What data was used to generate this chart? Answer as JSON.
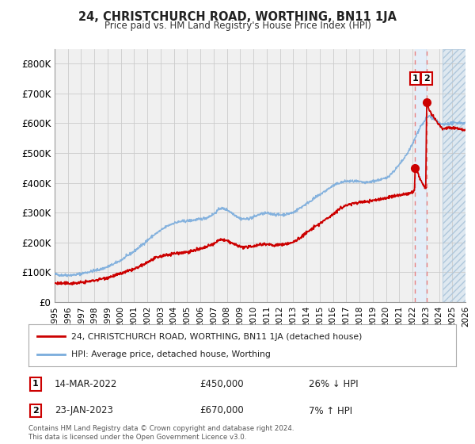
{
  "title": "24, CHRISTCHURCH ROAD, WORTHING, BN11 1JA",
  "subtitle": "Price paid vs. HM Land Registry's House Price Index (HPI)",
  "xlim_start": 1995.0,
  "xlim_end": 2026.0,
  "ylim": [
    0,
    850000
  ],
  "yticks": [
    0,
    100000,
    200000,
    300000,
    400000,
    500000,
    600000,
    700000,
    800000
  ],
  "ytick_labels": [
    "£0",
    "£100K",
    "£200K",
    "£300K",
    "£400K",
    "£500K",
    "£600K",
    "£700K",
    "£800K"
  ],
  "hpi_color": "#7aacdc",
  "price_color": "#cc0000",
  "marker_color": "#cc0000",
  "dashed_line_color": "#e88080",
  "background_color": "#ffffff",
  "plot_bg_color": "#f0f0f0",
  "future_hatch_color": "#dde8f0",
  "sale1_x": 2022.2,
  "sale1_y": 450000,
  "sale2_x": 2023.07,
  "sale2_y": 670000,
  "future_start": 2024.25,
  "legend_line1": "24, CHRISTCHURCH ROAD, WORTHING, BN11 1JA (detached house)",
  "legend_line2": "HPI: Average price, detached house, Worthing",
  "note1_num": "1",
  "note1_date": "14-MAR-2022",
  "note1_price": "£450,000",
  "note1_hpi": "26% ↓ HPI",
  "note2_num": "2",
  "note2_date": "23-JAN-2023",
  "note2_price": "£670,000",
  "note2_hpi": "7% ↑ HPI",
  "footer": "Contains HM Land Registry data © Crown copyright and database right 2024.\nThis data is licensed under the Open Government Licence v3.0.",
  "hpi_anchors": [
    [
      1995.0,
      93000
    ],
    [
      1995.5,
      90000
    ],
    [
      1996.0,
      90000
    ],
    [
      1996.5,
      91000
    ],
    [
      1997.0,
      95000
    ],
    [
      1997.5,
      100000
    ],
    [
      1998.0,
      105000
    ],
    [
      1998.5,
      110000
    ],
    [
      1999.0,
      118000
    ],
    [
      1999.5,
      128000
    ],
    [
      2000.0,
      140000
    ],
    [
      2000.5,
      155000
    ],
    [
      2001.0,
      170000
    ],
    [
      2001.5,
      188000
    ],
    [
      2002.0,
      207000
    ],
    [
      2002.5,
      225000
    ],
    [
      2003.0,
      240000
    ],
    [
      2003.5,
      255000
    ],
    [
      2004.0,
      265000
    ],
    [
      2004.5,
      270000
    ],
    [
      2005.0,
      272000
    ],
    [
      2005.5,
      275000
    ],
    [
      2006.0,
      278000
    ],
    [
      2006.5,
      283000
    ],
    [
      2007.0,
      295000
    ],
    [
      2007.5,
      315000
    ],
    [
      2008.0,
      310000
    ],
    [
      2008.5,
      295000
    ],
    [
      2009.0,
      280000
    ],
    [
      2009.5,
      278000
    ],
    [
      2010.0,
      285000
    ],
    [
      2010.5,
      295000
    ],
    [
      2011.0,
      298000
    ],
    [
      2011.5,
      295000
    ],
    [
      2012.0,
      292000
    ],
    [
      2012.5,
      295000
    ],
    [
      2013.0,
      300000
    ],
    [
      2013.5,
      315000
    ],
    [
      2014.0,
      330000
    ],
    [
      2014.5,
      345000
    ],
    [
      2015.0,
      360000
    ],
    [
      2015.5,
      375000
    ],
    [
      2016.0,
      390000
    ],
    [
      2016.5,
      400000
    ],
    [
      2017.0,
      405000
    ],
    [
      2017.5,
      405000
    ],
    [
      2018.0,
      403000
    ],
    [
      2018.5,
      400000
    ],
    [
      2019.0,
      405000
    ],
    [
      2019.5,
      410000
    ],
    [
      2020.0,
      415000
    ],
    [
      2020.5,
      435000
    ],
    [
      2021.0,
      460000
    ],
    [
      2021.5,
      490000
    ],
    [
      2022.0,
      530000
    ],
    [
      2022.3,
      560000
    ],
    [
      2022.6,
      590000
    ],
    [
      2022.9,
      605000
    ],
    [
      2023.0,
      615000
    ],
    [
      2023.3,
      625000
    ],
    [
      2023.6,
      615000
    ],
    [
      2023.9,
      605000
    ],
    [
      2024.0,
      600000
    ],
    [
      2024.3,
      595000
    ],
    [
      2024.6,
      598000
    ],
    [
      2025.0,
      600000
    ],
    [
      2025.5,
      602000
    ],
    [
      2026.0,
      600000
    ]
  ],
  "price_anchors": [
    [
      1995.0,
      63000
    ],
    [
      1995.5,
      62000
    ],
    [
      1996.0,
      62000
    ],
    [
      1996.5,
      63000
    ],
    [
      1997.0,
      65000
    ],
    [
      1997.5,
      68000
    ],
    [
      1998.0,
      72000
    ],
    [
      1998.5,
      77000
    ],
    [
      1999.0,
      82000
    ],
    [
      1999.5,
      88000
    ],
    [
      2000.0,
      95000
    ],
    [
      2000.5,
      103000
    ],
    [
      2001.0,
      110000
    ],
    [
      2001.5,
      120000
    ],
    [
      2002.0,
      133000
    ],
    [
      2002.5,
      145000
    ],
    [
      2003.0,
      153000
    ],
    [
      2003.5,
      158000
    ],
    [
      2004.0,
      163000
    ],
    [
      2004.5,
      165000
    ],
    [
      2005.0,
      168000
    ],
    [
      2005.5,
      172000
    ],
    [
      2006.0,
      178000
    ],
    [
      2006.5,
      185000
    ],
    [
      2007.0,
      195000
    ],
    [
      2007.5,
      210000
    ],
    [
      2008.0,
      205000
    ],
    [
      2008.5,
      195000
    ],
    [
      2009.0,
      185000
    ],
    [
      2009.5,
      183000
    ],
    [
      2010.0,
      188000
    ],
    [
      2010.5,
      193000
    ],
    [
      2011.0,
      195000
    ],
    [
      2011.5,
      190000
    ],
    [
      2012.0,
      192000
    ],
    [
      2012.5,
      195000
    ],
    [
      2013.0,
      200000
    ],
    [
      2013.5,
      215000
    ],
    [
      2014.0,
      232000
    ],
    [
      2014.5,
      248000
    ],
    [
      2015.0,
      263000
    ],
    [
      2015.5,
      278000
    ],
    [
      2016.0,
      295000
    ],
    [
      2016.5,
      312000
    ],
    [
      2017.0,
      325000
    ],
    [
      2017.5,
      330000
    ],
    [
      2018.0,
      335000
    ],
    [
      2018.5,
      337000
    ],
    [
      2019.0,
      340000
    ],
    [
      2019.5,
      345000
    ],
    [
      2020.0,
      348000
    ],
    [
      2020.5,
      355000
    ],
    [
      2021.0,
      358000
    ],
    [
      2021.5,
      362000
    ],
    [
      2022.0,
      368000
    ],
    [
      2022.15,
      375000
    ],
    [
      2022.2,
      450000
    ],
    [
      2022.25,
      455000
    ],
    [
      2022.5,
      420000
    ],
    [
      2022.8,
      395000
    ],
    [
      2023.0,
      380000
    ],
    [
      2023.07,
      670000
    ],
    [
      2023.2,
      650000
    ],
    [
      2023.5,
      625000
    ],
    [
      2024.0,
      595000
    ],
    [
      2024.3,
      580000
    ],
    [
      2024.6,
      585000
    ],
    [
      2025.0,
      585000
    ],
    [
      2025.5,
      582000
    ],
    [
      2026.0,
      578000
    ]
  ]
}
